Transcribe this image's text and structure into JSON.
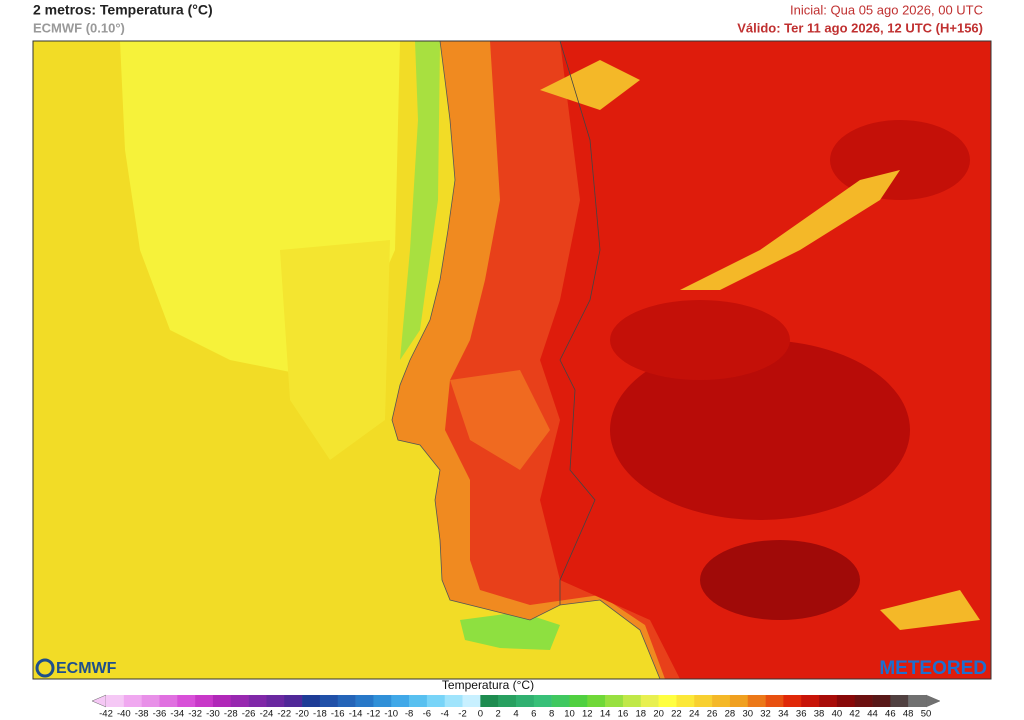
{
  "header": {
    "title": "2 metros: Temperatura (°C)",
    "model": "ECMWF (0.10°)",
    "initial": "Inicial: Qua 05 ago 2026, 00 UTC",
    "valid": "Válido: Ter 11 ago 2026, 12 UTC (H+156)"
  },
  "logos": {
    "left": "ECMWF",
    "right": "METEORED"
  },
  "legend": {
    "title": "Temperatura (°C)",
    "ticks": [
      -42,
      -40,
      -38,
      -36,
      -34,
      -32,
      -30,
      -28,
      -26,
      -24,
      -22,
      -20,
      -18,
      -16,
      -14,
      -12,
      -10,
      -8,
      -6,
      -4,
      -2,
      0,
      2,
      4,
      6,
      8,
      10,
      12,
      14,
      16,
      18,
      20,
      22,
      24,
      26,
      28,
      30,
      32,
      34,
      36,
      38,
      40,
      42,
      44,
      46,
      48,
      50
    ],
    "colors": [
      "#f5c8f5",
      "#f0a8f0",
      "#e890e8",
      "#e070e0",
      "#d850d8",
      "#c838c8",
      "#b028b8",
      "#9828b0",
      "#8028a8",
      "#6a28a0",
      "#502898",
      "#1e3c96",
      "#2050a8",
      "#2464b8",
      "#2878c8",
      "#3090d8",
      "#40a8e8",
      "#58c0f0",
      "#78d4f8",
      "#a0e4fc",
      "#c8f0ff",
      "#1e8c50",
      "#28a060",
      "#30b070",
      "#38c078",
      "#40c860",
      "#50d040",
      "#70d838",
      "#98e040",
      "#c0e848",
      "#e8f050",
      "#ffff40",
      "#fce838",
      "#f8d030",
      "#f4b828",
      "#f0a020",
      "#ec7818",
      "#e85010",
      "#e02808",
      "#c81408",
      "#a80c08",
      "#880808",
      "#6c1010",
      "#581818",
      "#504040",
      "#707070"
    ]
  }
}
